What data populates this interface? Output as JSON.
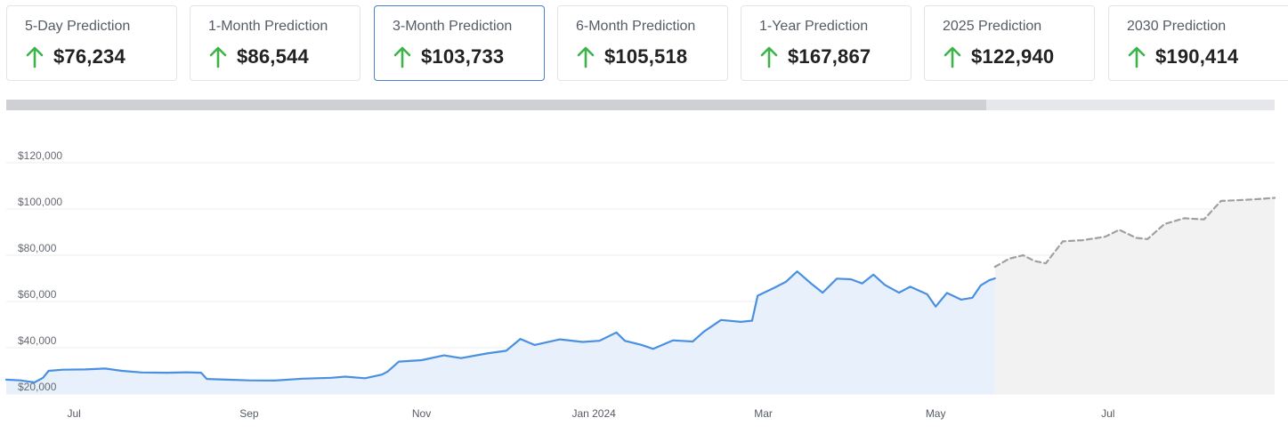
{
  "cards": [
    {
      "label": "5-Day Prediction",
      "value": "$76,234",
      "trend": "up",
      "selected": false
    },
    {
      "label": "1-Month Prediction",
      "value": "$86,544",
      "trend": "up",
      "selected": false
    },
    {
      "label": "3-Month Prediction",
      "value": "$103,733",
      "trend": "up",
      "selected": true
    },
    {
      "label": "6-Month Prediction",
      "value": "$105,518",
      "trend": "up",
      "selected": false
    },
    {
      "label": "1-Year Prediction",
      "value": "$167,867",
      "trend": "up",
      "selected": false
    },
    {
      "label": "2025 Prediction",
      "value": "$122,940",
      "trend": "up",
      "selected": false
    },
    {
      "label": "2030 Prediction",
      "value": "$190,414",
      "trend": "up",
      "selected": false
    }
  ],
  "colors": {
    "up_arrow": "#3db34a",
    "selected_border": "#4a7fd0",
    "history_line": "#4a90e2",
    "history_fill": "#e8f0fb",
    "forecast_line": "#a0a0a0",
    "forecast_fill": "#f2f2f2"
  },
  "chart_data": {
    "type": "area",
    "ylim": [
      20000,
      120000
    ],
    "y_ticks": [
      20000,
      40000,
      60000,
      80000,
      100000,
      120000
    ],
    "y_tick_labels": [
      "$20,000",
      "$40,000",
      "$60,000",
      "$80,000",
      "$100,000",
      "$120,000"
    ],
    "x_range": [
      "2023-06-07",
      "2024-08-29"
    ],
    "x_ticks": [
      {
        "date": "2023-07-01",
        "label": "Jul"
      },
      {
        "date": "2023-09-01",
        "label": "Sep"
      },
      {
        "date": "2023-11-01",
        "label": "Nov"
      },
      {
        "date": "2024-01-01",
        "label": "Jan 2024"
      },
      {
        "date": "2024-03-01",
        "label": "Mar"
      },
      {
        "date": "2024-05-01",
        "label": "May"
      },
      {
        "date": "2024-07-01",
        "label": "Jul"
      }
    ],
    "grid": true,
    "series": [
      {
        "style": "solid",
        "points": [
          [
            "2023-06-07",
            26200
          ],
          [
            "2023-06-12",
            25900
          ],
          [
            "2023-06-17",
            25000
          ],
          [
            "2023-06-20",
            27000
          ],
          [
            "2023-06-22",
            30000
          ],
          [
            "2023-06-27",
            30500
          ],
          [
            "2023-07-05",
            30600
          ],
          [
            "2023-07-12",
            31000
          ],
          [
            "2023-07-18",
            30000
          ],
          [
            "2023-07-25",
            29300
          ],
          [
            "2023-08-03",
            29200
          ],
          [
            "2023-08-10",
            29400
          ],
          [
            "2023-08-15",
            29200
          ],
          [
            "2023-08-17",
            26500
          ],
          [
            "2023-08-24",
            26200
          ],
          [
            "2023-09-01",
            25900
          ],
          [
            "2023-09-10",
            25800
          ],
          [
            "2023-09-20",
            26600
          ],
          [
            "2023-09-30",
            27000
          ],
          [
            "2023-10-05",
            27500
          ],
          [
            "2023-10-12",
            26800
          ],
          [
            "2023-10-18",
            28400
          ],
          [
            "2023-10-20",
            29700
          ],
          [
            "2023-10-24",
            34000
          ],
          [
            "2023-11-01",
            34600
          ],
          [
            "2023-11-09",
            36700
          ],
          [
            "2023-11-15",
            35500
          ],
          [
            "2023-11-24",
            37500
          ],
          [
            "2023-12-01",
            38700
          ],
          [
            "2023-12-06",
            43800
          ],
          [
            "2023-12-11",
            41200
          ],
          [
            "2023-12-20",
            43600
          ],
          [
            "2023-12-28",
            42500
          ],
          [
            "2024-01-03",
            43000
          ],
          [
            "2024-01-09",
            46600
          ],
          [
            "2024-01-12",
            43000
          ],
          [
            "2024-01-18",
            41200
          ],
          [
            "2024-01-22",
            39500
          ],
          [
            "2024-01-29",
            43200
          ],
          [
            "2024-02-05",
            42700
          ],
          [
            "2024-02-09",
            47000
          ],
          [
            "2024-02-15",
            52000
          ],
          [
            "2024-02-22",
            51200
          ],
          [
            "2024-02-26",
            51700
          ],
          [
            "2024-02-28",
            62500
          ],
          [
            "2024-03-05",
            66000
          ],
          [
            "2024-03-09",
            68500
          ],
          [
            "2024-03-13",
            73000
          ],
          [
            "2024-03-18",
            67700
          ],
          [
            "2024-03-22",
            63800
          ],
          [
            "2024-03-27",
            69900
          ],
          [
            "2024-04-01",
            69600
          ],
          [
            "2024-04-05",
            67800
          ],
          [
            "2024-04-09",
            71600
          ],
          [
            "2024-04-13",
            67200
          ],
          [
            "2024-04-18",
            63800
          ],
          [
            "2024-04-22",
            66400
          ],
          [
            "2024-04-28",
            63100
          ],
          [
            "2024-05-01",
            57800
          ],
          [
            "2024-05-05",
            63700
          ],
          [
            "2024-05-10",
            60800
          ],
          [
            "2024-05-14",
            61600
          ],
          [
            "2024-05-17",
            67000
          ],
          [
            "2024-05-20",
            69200
          ],
          [
            "2024-05-22",
            70000
          ]
        ]
      },
      {
        "style": "dashed",
        "points": [
          [
            "2024-05-22",
            75000
          ],
          [
            "2024-05-27",
            78500
          ],
          [
            "2024-06-01",
            80000
          ],
          [
            "2024-06-05",
            77500
          ],
          [
            "2024-06-09",
            76500
          ],
          [
            "2024-06-15",
            86000
          ],
          [
            "2024-06-22",
            86500
          ],
          [
            "2024-06-30",
            88000
          ],
          [
            "2024-07-05",
            91000
          ],
          [
            "2024-07-11",
            87500
          ],
          [
            "2024-07-15",
            87000
          ],
          [
            "2024-07-21",
            93500
          ],
          [
            "2024-07-28",
            96000
          ],
          [
            "2024-08-04",
            95500
          ],
          [
            "2024-08-10",
            103500
          ],
          [
            "2024-08-16",
            103800
          ],
          [
            "2024-08-22",
            104200
          ],
          [
            "2024-08-29",
            104800
          ]
        ]
      }
    ]
  }
}
